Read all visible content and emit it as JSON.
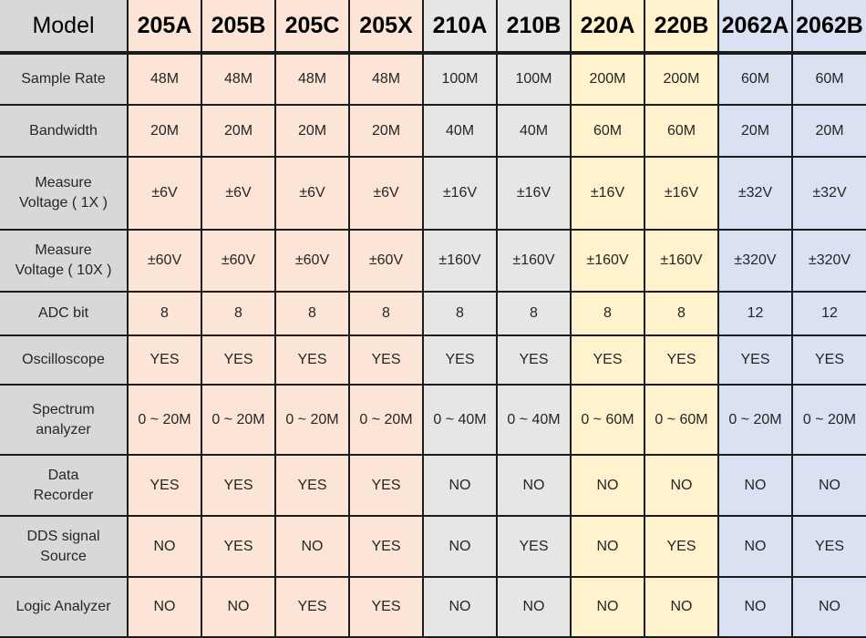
{
  "colors": {
    "label_column_bg": "#d8d8d8",
    "group_205_bg": "#fce4d6",
    "group_210_bg": "#e7e6e6",
    "group_220_bg": "#fff2cc",
    "group_2062_bg": "#d9e1f2",
    "border": "#1c1c1c",
    "text": "#262626"
  },
  "chart_data": {
    "type": "table",
    "title": "Model",
    "columns": [
      "205A",
      "205B",
      "205C",
      "205X",
      "210A",
      "210B",
      "220A",
      "220B",
      "2062A",
      "2062B"
    ],
    "column_colors": [
      "#fce4d6",
      "#fce4d6",
      "#fce4d6",
      "#fce4d6",
      "#e7e6e6",
      "#e7e6e6",
      "#fff2cc",
      "#fff2cc",
      "#d9e1f2",
      "#d9e1f2"
    ],
    "rows": [
      {
        "label": "Sample Rate",
        "values": [
          "48M",
          "48M",
          "48M",
          "48M",
          "100M",
          "100M",
          "200M",
          "200M",
          "60M",
          "60M"
        ]
      },
      {
        "label": "Bandwidth",
        "values": [
          "20M",
          "20M",
          "20M",
          "20M",
          "40M",
          "40M",
          "60M",
          "60M",
          "20M",
          "20M"
        ]
      },
      {
        "label": "Measure\nVoltage ( 1X )",
        "values": [
          "±6V",
          "±6V",
          "±6V",
          "±6V",
          "±16V",
          "±16V",
          "±16V",
          "±16V",
          "±32V",
          "±32V"
        ]
      },
      {
        "label": "Measure\nVoltage ( 10X )",
        "values": [
          "±60V",
          "±60V",
          "±60V",
          "±60V",
          "±160V",
          "±160V",
          "±160V",
          "±160V",
          "±320V",
          "±320V"
        ]
      },
      {
        "label": "ADC bit",
        "values": [
          "8",
          "8",
          "8",
          "8",
          "8",
          "8",
          "8",
          "8",
          "12",
          "12"
        ]
      },
      {
        "label": "Oscilloscope",
        "values": [
          "YES",
          "YES",
          "YES",
          "YES",
          "YES",
          "YES",
          "YES",
          "YES",
          "YES",
          "YES"
        ]
      },
      {
        "label": "Spectrum\nanalyzer",
        "values": [
          "0 ~ 20M",
          "0 ~ 20M",
          "0 ~ 20M",
          "0 ~ 20M",
          "0 ~ 40M",
          "0 ~ 40M",
          "0 ~ 60M",
          "0 ~ 60M",
          "0 ~ 20M",
          "0 ~ 20M"
        ]
      },
      {
        "label": "Data\nRecorder",
        "values": [
          "YES",
          "YES",
          "YES",
          "YES",
          "NO",
          "NO",
          "NO",
          "NO",
          "NO",
          "NO"
        ]
      },
      {
        "label": "DDS signal\nSource",
        "values": [
          "NO",
          "YES",
          "NO",
          "YES",
          "NO",
          "YES",
          "NO",
          "YES",
          "NO",
          "YES"
        ]
      },
      {
        "label": "Logic Analyzer",
        "values": [
          "NO",
          "NO",
          "YES",
          "YES",
          "NO",
          "NO",
          "NO",
          "NO",
          "NO",
          "NO"
        ]
      }
    ]
  }
}
